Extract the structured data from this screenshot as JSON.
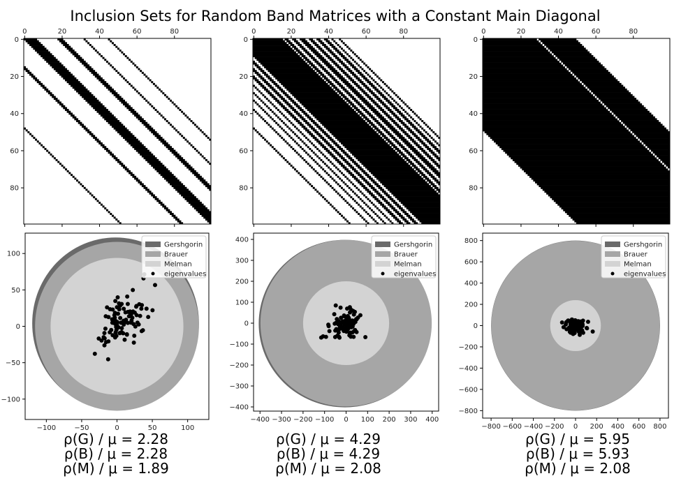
{
  "figure": {
    "title": "Inclusion Sets for Random Band Matrices with a Constant Main Diagonal"
  },
  "legend_labels": [
    "Gershgorin",
    "Brauer",
    "Melman",
    "eigenvalues"
  ],
  "colors": {
    "gershgorin": "#6a6a6a",
    "brauer": "#a6a6a6",
    "melman": "#d3d3d3",
    "eigenvalues": "#000000",
    "pattern": "#000000"
  },
  "chart_data": [
    {
      "type": "heatmap",
      "description": "sparsity pattern",
      "matrix_size": 100,
      "axis_ticks": [
        "0",
        "20",
        "40",
        "60",
        "80"
      ],
      "grid": false,
      "bands": [
        {
          "offset": 0,
          "width": 7
        },
        {
          "offset": 18,
          "width": 2
        },
        {
          "offset": 19,
          "width": 2
        },
        {
          "offset": 32,
          "width": 1
        },
        {
          "offset": 45,
          "width": 1
        },
        {
          "offset": -15,
          "width": 1
        },
        {
          "offset": -16,
          "width": 1
        },
        {
          "offset": -48,
          "width": 1
        }
      ]
    },
    {
      "type": "heatmap",
      "description": "sparsity pattern",
      "matrix_size": 100,
      "axis_ticks": [
        "0",
        "20",
        "40",
        "60",
        "80"
      ],
      "grid": false,
      "bands": [
        {
          "offset": -9,
          "width": 25
        },
        {
          "offset": 17,
          "width": 2
        },
        {
          "offset": 21,
          "width": 2
        },
        {
          "offset": 25,
          "width": 3
        },
        {
          "offset": 30,
          "width": 2
        },
        {
          "offset": 34,
          "width": 2
        },
        {
          "offset": 38,
          "width": 2
        },
        {
          "offset": 42,
          "width": 1
        },
        {
          "offset": 46,
          "width": 1
        },
        {
          "offset": -13,
          "width": 2
        },
        {
          "offset": -17,
          "width": 2
        },
        {
          "offset": -21,
          "width": 2
        },
        {
          "offset": -25,
          "width": 1
        },
        {
          "offset": -29,
          "width": 1
        },
        {
          "offset": -33,
          "width": 1
        },
        {
          "offset": -38,
          "width": 1
        },
        {
          "offset": -48,
          "width": 1
        }
      ]
    },
    {
      "type": "heatmap",
      "description": "sparsity pattern",
      "matrix_size": 100,
      "axis_ticks": [
        "0",
        "20",
        "40",
        "60",
        "80"
      ],
      "grid": false,
      "bands": [
        {
          "offset": -49,
          "width": 99
        }
      ],
      "gap_lines": [
        29
      ]
    },
    {
      "type": "scatter",
      "xlim": [
        -130,
        130
      ],
      "ylim": [
        -128,
        128
      ],
      "xticks": [
        -100,
        -50,
        0,
        50,
        100
      ],
      "xtick_labels": [
        "−100",
        "−50",
        "0",
        "50",
        "100"
      ],
      "yticks": [
        -100,
        -50,
        0,
        50,
        100
      ],
      "ytick_labels": [
        "−100",
        "−50",
        "0",
        "50",
        "100"
      ],
      "legend": "top-right",
      "regions": {
        "gershgorin": {
          "center": [
            0,
            0
          ],
          "radius": 118,
          "offset": [
            -2,
            4
          ]
        },
        "brauer": {
          "center": [
            0,
            0
          ],
          "radius": 116
        },
        "melman": {
          "center": [
            0,
            0
          ],
          "radius": 94
        }
      },
      "eigenvalues_spread": {
        "center": [
          8,
          8
        ],
        "sx": 18,
        "sy": 22,
        "corr": 0.6,
        "count": 100
      },
      "stats": [
        "ρ(G) / μ = 2.28",
        "ρ(B) / μ = 2.28",
        "ρ(M) / μ = 1.89"
      ]
    },
    {
      "type": "scatter",
      "xlim": [
        -430,
        430
      ],
      "ylim": [
        -420,
        430
      ],
      "xticks": [
        -400,
        -300,
        -200,
        -100,
        0,
        100,
        200,
        300,
        400
      ],
      "xtick_labels": [
        "−400",
        "−300",
        "−200",
        "−100",
        "0",
        "100",
        "200",
        "300",
        "400"
      ],
      "yticks": [
        -400,
        -300,
        -200,
        -100,
        0,
        100,
        200,
        300,
        400
      ],
      "ytick_labels": [
        "−400",
        "−300",
        "−200",
        "−100",
        "0",
        "100",
        "200",
        "300",
        "400"
      ],
      "legend": "top-right",
      "regions": {
        "gershgorin": {
          "center": [
            0,
            0
          ],
          "radius": 400,
          "offset": [
            -6,
            -2
          ]
        },
        "brauer": {
          "center": [
            0,
            0
          ],
          "radius": 398
        },
        "melman": {
          "center": [
            0,
            0
          ],
          "radius": 200
        }
      },
      "eigenvalues_spread": {
        "center": [
          -5,
          -5
        ],
        "sx": 38,
        "sy": 32,
        "corr": 0.1,
        "count": 100
      },
      "stats": [
        "ρ(G) / μ = 4.29",
        "ρ(B) / μ = 4.29",
        "ρ(M) / μ = 2.08"
      ]
    },
    {
      "type": "scatter",
      "xlim": [
        -880,
        880
      ],
      "ylim": [
        -870,
        870
      ],
      "xticks": [
        -800,
        -600,
        -400,
        -200,
        0,
        200,
        400,
        600,
        800
      ],
      "xtick_labels": [
        "−800",
        "−600",
        "−400",
        "−200",
        "0",
        "200",
        "400",
        "600",
        "800"
      ],
      "yticks": [
        -800,
        -600,
        -400,
        -200,
        0,
        200,
        400,
        600,
        800
      ],
      "ytick_labels": [
        "−800",
        "−600",
        "−400",
        "−200",
        "0",
        "200",
        "400",
        "600",
        "800"
      ],
      "legend": "top-right",
      "regions": {
        "gershgorin": {
          "center": [
            0,
            0
          ],
          "radius": 800,
          "offset": [
            0,
            0
          ]
        },
        "brauer": {
          "center": [
            0,
            0
          ],
          "radius": 798
        },
        "melman": {
          "center": [
            0,
            0
          ],
          "radius": 240
        }
      },
      "eigenvalues_spread": {
        "center": [
          0,
          0
        ],
        "sx": 45,
        "sy": 42,
        "corr": 0.0,
        "count": 100
      },
      "stats": [
        "ρ(G) / μ = 5.95",
        "ρ(B) / μ = 5.93",
        "ρ(M) / μ = 2.08"
      ]
    }
  ]
}
